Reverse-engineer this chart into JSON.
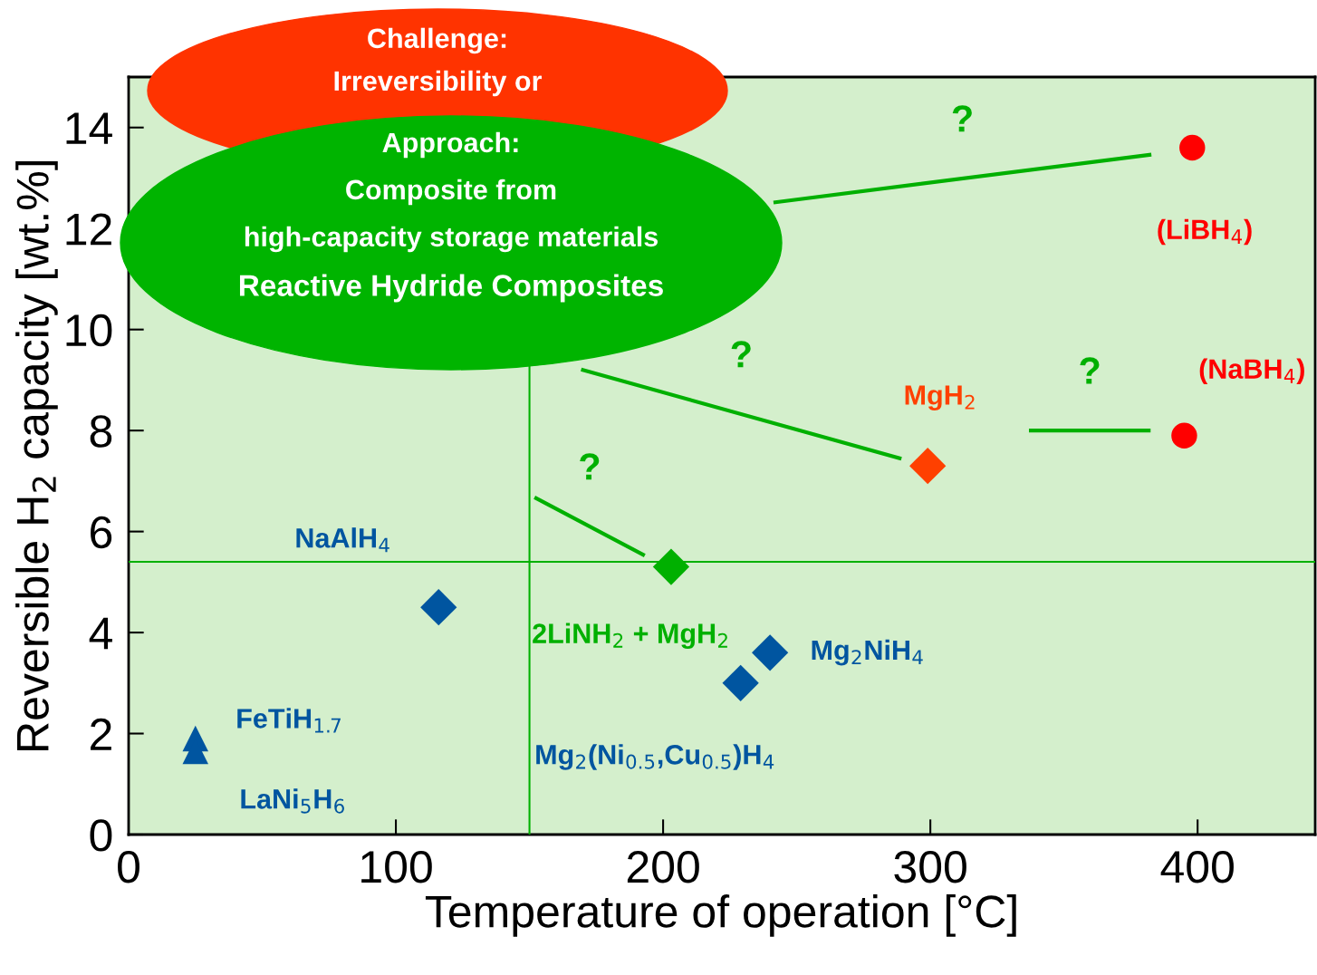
{
  "chart_data": {
    "type": "scatter",
    "xlabel": "Temperature of operation [°C]",
    "ylabel": "Reversible H$_{2}$ capacity [wt.%]",
    "xlim": [
      0,
      444
    ],
    "ylim": [
      0,
      15
    ],
    "xticks": [
      0,
      100,
      200,
      300,
      400
    ],
    "yticks": [
      0,
      2,
      4,
      6,
      8,
      10,
      12,
      14
    ],
    "grid": false,
    "legend": false,
    "series": [
      {
        "name": "(LiBH$_{4}$)",
        "color": "#ff0000",
        "marker": "circle",
        "x": [
          398
        ],
        "values": [
          13.6
        ]
      },
      {
        "name": "(NaBH$_{4}$)",
        "color": "#ff0000",
        "marker": "circle",
        "x": [
          395
        ],
        "values": [
          7.9
        ]
      },
      {
        "name": "MgH$_{2}$",
        "color": "#ff4000",
        "marker": "diamond",
        "x": [
          299
        ],
        "values": [
          7.3
        ]
      },
      {
        "name": "2LiNH$_{2}$ + MgH$_{2}$",
        "color": "#00b000",
        "marker": "diamond",
        "x": [
          203
        ],
        "values": [
          5.3
        ]
      },
      {
        "name": "NaAlH$_{4}$",
        "color": "#0055a0",
        "marker": "diamond",
        "x": [
          116
        ],
        "values": [
          4.5
        ]
      },
      {
        "name": "Mg$_{2}$NiH$_{4}$",
        "color": "#0055a0",
        "marker": "diamond",
        "x": [
          240
        ],
        "values": [
          3.6
        ]
      },
      {
        "name": "Mg$_{2}$(Ni$_{0.5}$,Cu$_{0.5}$)H$_{4}$",
        "color": "#0055a0",
        "marker": "diamond",
        "x": [
          229
        ],
        "values": [
          3.0
        ]
      },
      {
        "name": "FeTiH$_{1.7}$",
        "color": "#0055a0",
        "marker": "triangle",
        "x": [
          25
        ],
        "values": [
          1.9
        ]
      },
      {
        "name": "LaNi$_{5}$H$_{6}$",
        "color": "#0055a0",
        "marker": "triangle",
        "x": [
          25
        ],
        "values": [
          1.65
        ]
      },
      {
        "type": "line",
        "color": "#00b000",
        "x": [
          382,
          242
        ],
        "values": [
          13.46,
          12.52
        ]
      },
      {
        "type": "line",
        "color": "#00b000",
        "x": [
          288.5,
          170
        ],
        "values": [
          7.45,
          9.2
        ]
      },
      {
        "type": "line",
        "color": "#00b000",
        "x": [
          381.7,
          337.6
        ],
        "values": [
          8.0,
          8.0
        ]
      },
      {
        "type": "line",
        "color": "#00b000",
        "x": [
          192.5,
          152.5
        ],
        "values": [
          5.54,
          6.66
        ]
      }
    ],
    "ref_lines": [
      {
        "axis": "x",
        "value": 150,
        "color": "#00b000"
      },
      {
        "axis": "y",
        "value": 5.4,
        "color": "#00b000"
      }
    ],
    "annotations": [
      "?",
      "?",
      "?",
      "?",
      "Challenge:\nIrreversibility or",
      "Approach:\nComposite from\nhigh-capacity storage materials\nReactive Hydride Composites"
    ]
  }
}
